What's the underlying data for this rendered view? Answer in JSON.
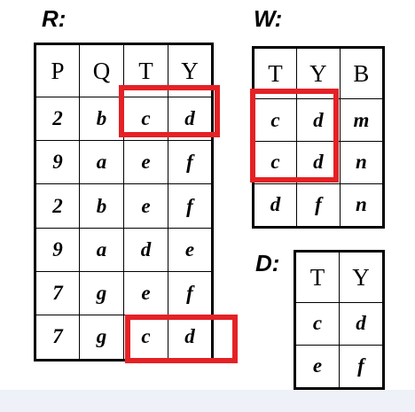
{
  "highlight_color": "#e52125",
  "relations": {
    "R": {
      "label": "R:",
      "columns": [
        "P",
        "Q",
        "T",
        "Y"
      ],
      "rows": [
        [
          "2",
          "b",
          "c",
          "d"
        ],
        [
          "9",
          "a",
          "e",
          "f"
        ],
        [
          "2",
          "b",
          "e",
          "f"
        ],
        [
          "9",
          "a",
          "d",
          "e"
        ],
        [
          "7",
          "g",
          "e",
          "f"
        ],
        [
          "7",
          "g",
          "c",
          "d"
        ]
      ]
    },
    "W": {
      "label": "W:",
      "columns": [
        "T",
        "Y",
        "B"
      ],
      "rows": [
        [
          "c",
          "d",
          "m"
        ],
        [
          "c",
          "d",
          "n"
        ],
        [
          "d",
          "f",
          "n"
        ]
      ]
    },
    "D": {
      "label": "D:",
      "columns": [
        "T",
        "Y"
      ],
      "rows": [
        [
          "c",
          "d"
        ],
        [
          "e",
          "f"
        ]
      ]
    }
  }
}
